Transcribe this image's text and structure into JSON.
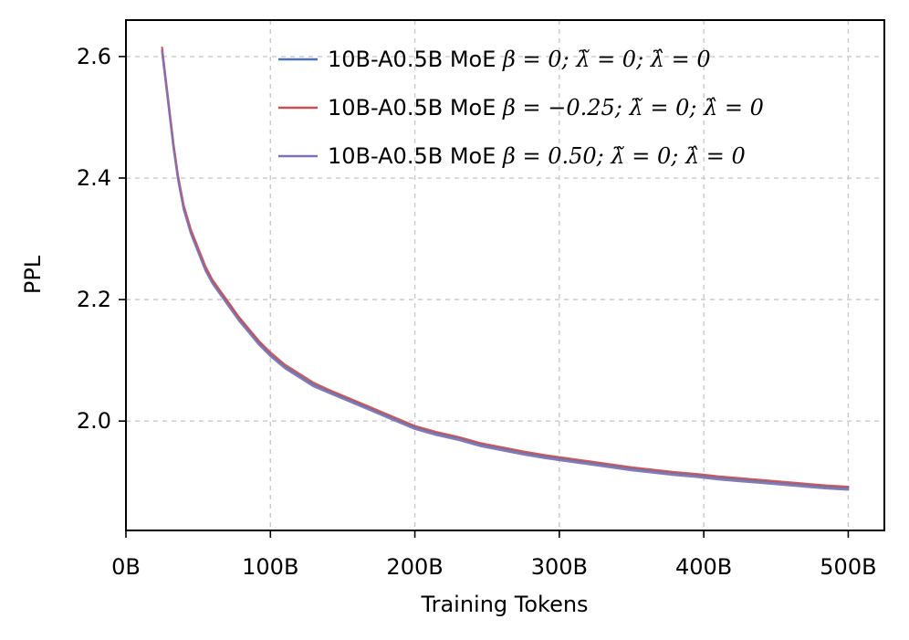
{
  "chart_data": {
    "type": "line",
    "title": "",
    "xlabel": "Training Tokens",
    "ylabel": "PPL",
    "xlim": [
      0,
      525
    ],
    "ylim": [
      1.82,
      2.66
    ],
    "xticks": [
      0,
      100,
      200,
      300,
      400,
      500
    ],
    "xtick_labels": [
      "0B",
      "100B",
      "200B",
      "300B",
      "400B",
      "500B"
    ],
    "yticks": [
      2.0,
      2.2,
      2.4,
      2.6
    ],
    "ytick_labels": [
      "2.0",
      "2.2",
      "2.4",
      "2.6"
    ],
    "grid": true,
    "legend_position": "top-right",
    "x": [
      25,
      27,
      30,
      33,
      36,
      40,
      45,
      50,
      55,
      60,
      66,
      72,
      78,
      85,
      92,
      100,
      110,
      120,
      130,
      140,
      150,
      160,
      170,
      180,
      190,
      200,
      215,
      230,
      245,
      260,
      275,
      290,
      305,
      320,
      335,
      350,
      365,
      380,
      395,
      410,
      425,
      440,
      455,
      470,
      485,
      500
    ],
    "series": [
      {
        "name": "10B-A0.5B MoE",
        "math": "β = 0;  λ̃ = 0;  λ̂ = 0",
        "color": "#4c72b0",
        "values": [
          2.61,
          2.57,
          2.51,
          2.45,
          2.4,
          2.35,
          2.31,
          2.28,
          2.25,
          2.23,
          2.21,
          2.19,
          2.17,
          2.15,
          2.13,
          2.11,
          2.09,
          2.075,
          2.06,
          2.05,
          2.04,
          2.03,
          2.02,
          2.01,
          2.0,
          1.99,
          1.98,
          1.972,
          1.962,
          1.955,
          1.948,
          1.942,
          1.937,
          1.932,
          1.927,
          1.922,
          1.918,
          1.914,
          1.911,
          1.907,
          1.904,
          1.901,
          1.898,
          1.895,
          1.892,
          1.89
        ]
      },
      {
        "name": "10B-A0.5B MoE",
        "math": "β = −0.25;  λ̃ = 0;  λ̂ = 0",
        "color": "#c44e52",
        "values": [
          2.615,
          2.575,
          2.515,
          2.455,
          2.405,
          2.355,
          2.315,
          2.285,
          2.255,
          2.232,
          2.212,
          2.192,
          2.172,
          2.152,
          2.132,
          2.113,
          2.093,
          2.078,
          2.063,
          2.052,
          2.042,
          2.032,
          2.022,
          2.012,
          2.002,
          1.992,
          1.982,
          1.974,
          1.964,
          1.957,
          1.95,
          1.944,
          1.939,
          1.934,
          1.929,
          1.924,
          1.92,
          1.916,
          1.913,
          1.909,
          1.906,
          1.903,
          1.9,
          1.897,
          1.894,
          1.892
        ]
      },
      {
        "name": "10B-A0.5B MoE",
        "math": "β = 0.50;  λ̃ = 0;  λ̂ = 0",
        "color": "#8172b2",
        "values": [
          2.608,
          2.568,
          2.508,
          2.448,
          2.398,
          2.348,
          2.308,
          2.278,
          2.248,
          2.226,
          2.206,
          2.186,
          2.166,
          2.146,
          2.126,
          2.107,
          2.087,
          2.072,
          2.057,
          2.047,
          2.037,
          2.027,
          2.017,
          2.007,
          1.997,
          1.987,
          1.977,
          1.969,
          1.959,
          1.952,
          1.945,
          1.939,
          1.934,
          1.929,
          1.924,
          1.919,
          1.915,
          1.911,
          1.908,
          1.904,
          1.901,
          1.898,
          1.895,
          1.892,
          1.889,
          1.887
        ]
      }
    ]
  }
}
